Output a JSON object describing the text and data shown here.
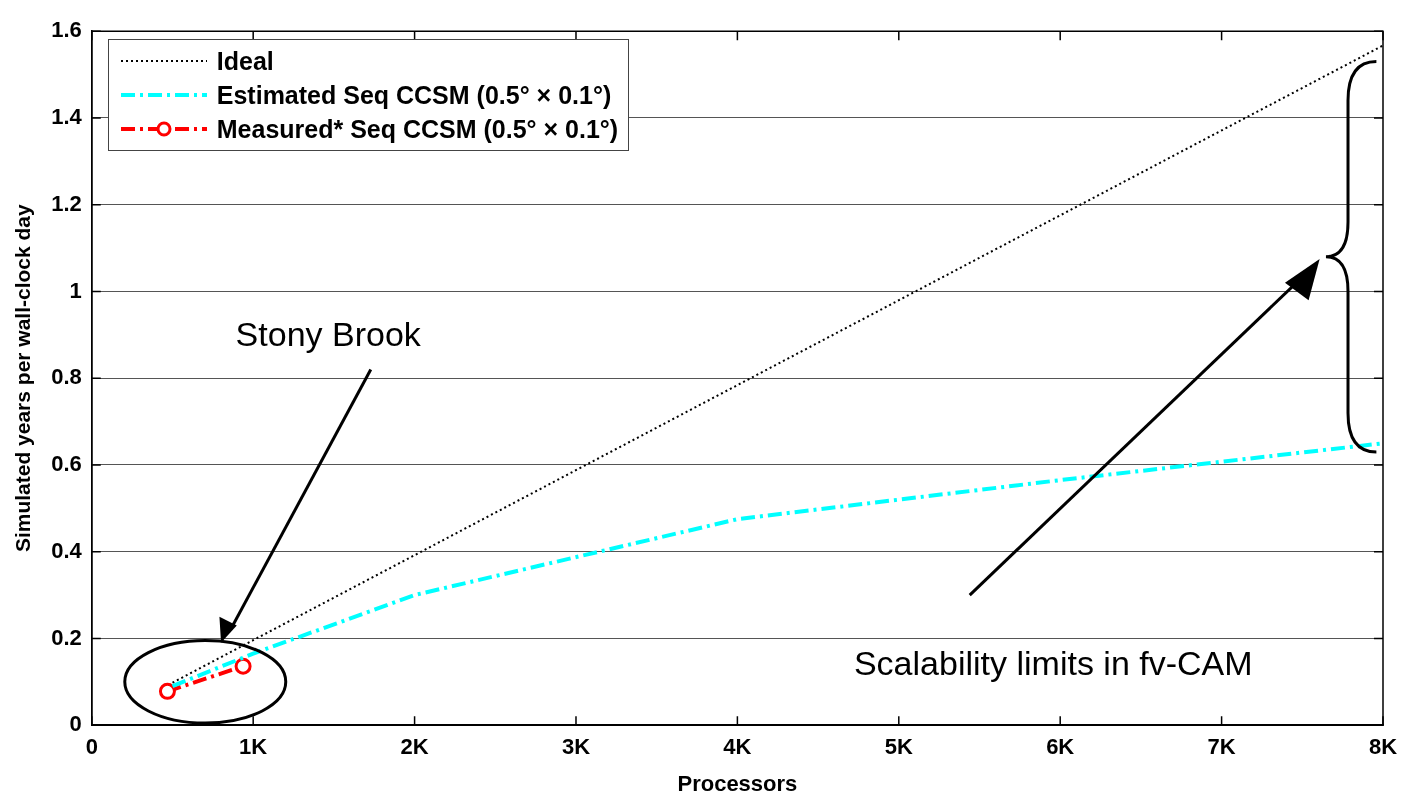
{
  "chart_data": {
    "type": "line",
    "xlabel": "Processors",
    "ylabel": "Simulated years per wall-clock day",
    "xlim": [
      0,
      8192
    ],
    "xticks": [
      0,
      {
        "value": 1024,
        "label": "1K"
      },
      {
        "value": 2048,
        "label": "2K"
      },
      {
        "value": 3072,
        "label": "3K"
      },
      {
        "value": 4096,
        "label": "4K"
      },
      {
        "value": 5120,
        "label": "5K"
      },
      {
        "value": 6144,
        "label": "6K"
      },
      {
        "value": 7168,
        "label": "7K"
      },
      {
        "value": 8192,
        "label": "8K"
      }
    ],
    "ylim": [
      0,
      1.6
    ],
    "yticks": [
      0,
      0.2,
      0.4,
      0.6,
      0.8,
      1,
      1.2,
      1.4,
      1.6
    ],
    "grid": "y",
    "legend": "top left",
    "series": [
      {
        "name": "Ideal",
        "color": "#000000",
        "line_style": "dotted",
        "marker": "none",
        "x": [
          512,
          1024,
          2048,
          4096,
          8192
        ],
        "values": [
          0.098,
          0.196,
          0.392,
          0.784,
          1.567
        ]
      },
      {
        "name": "Estimated Seq CCSM (0.5° × 0.1°)",
        "color": "#00ffff",
        "line_style": "dashed",
        "marker": "none",
        "x": [
          512,
          1024,
          2048,
          4096,
          6144,
          8192
        ],
        "values": [
          0.09,
          0.165,
          0.3,
          0.475,
          0.565,
          0.65
        ]
      },
      {
        "name": "Measured* Seq CCSM (0.5° × 0.1°)",
        "color": "#ff0000",
        "line_style": "dashed",
        "marker": "circle",
        "x": [
          480,
          960
        ],
        "values": [
          0.078,
          0.136
        ]
      }
    ],
    "annotations": [
      "Stony Brook",
      "Scalability limits in fv-CAM"
    ]
  }
}
